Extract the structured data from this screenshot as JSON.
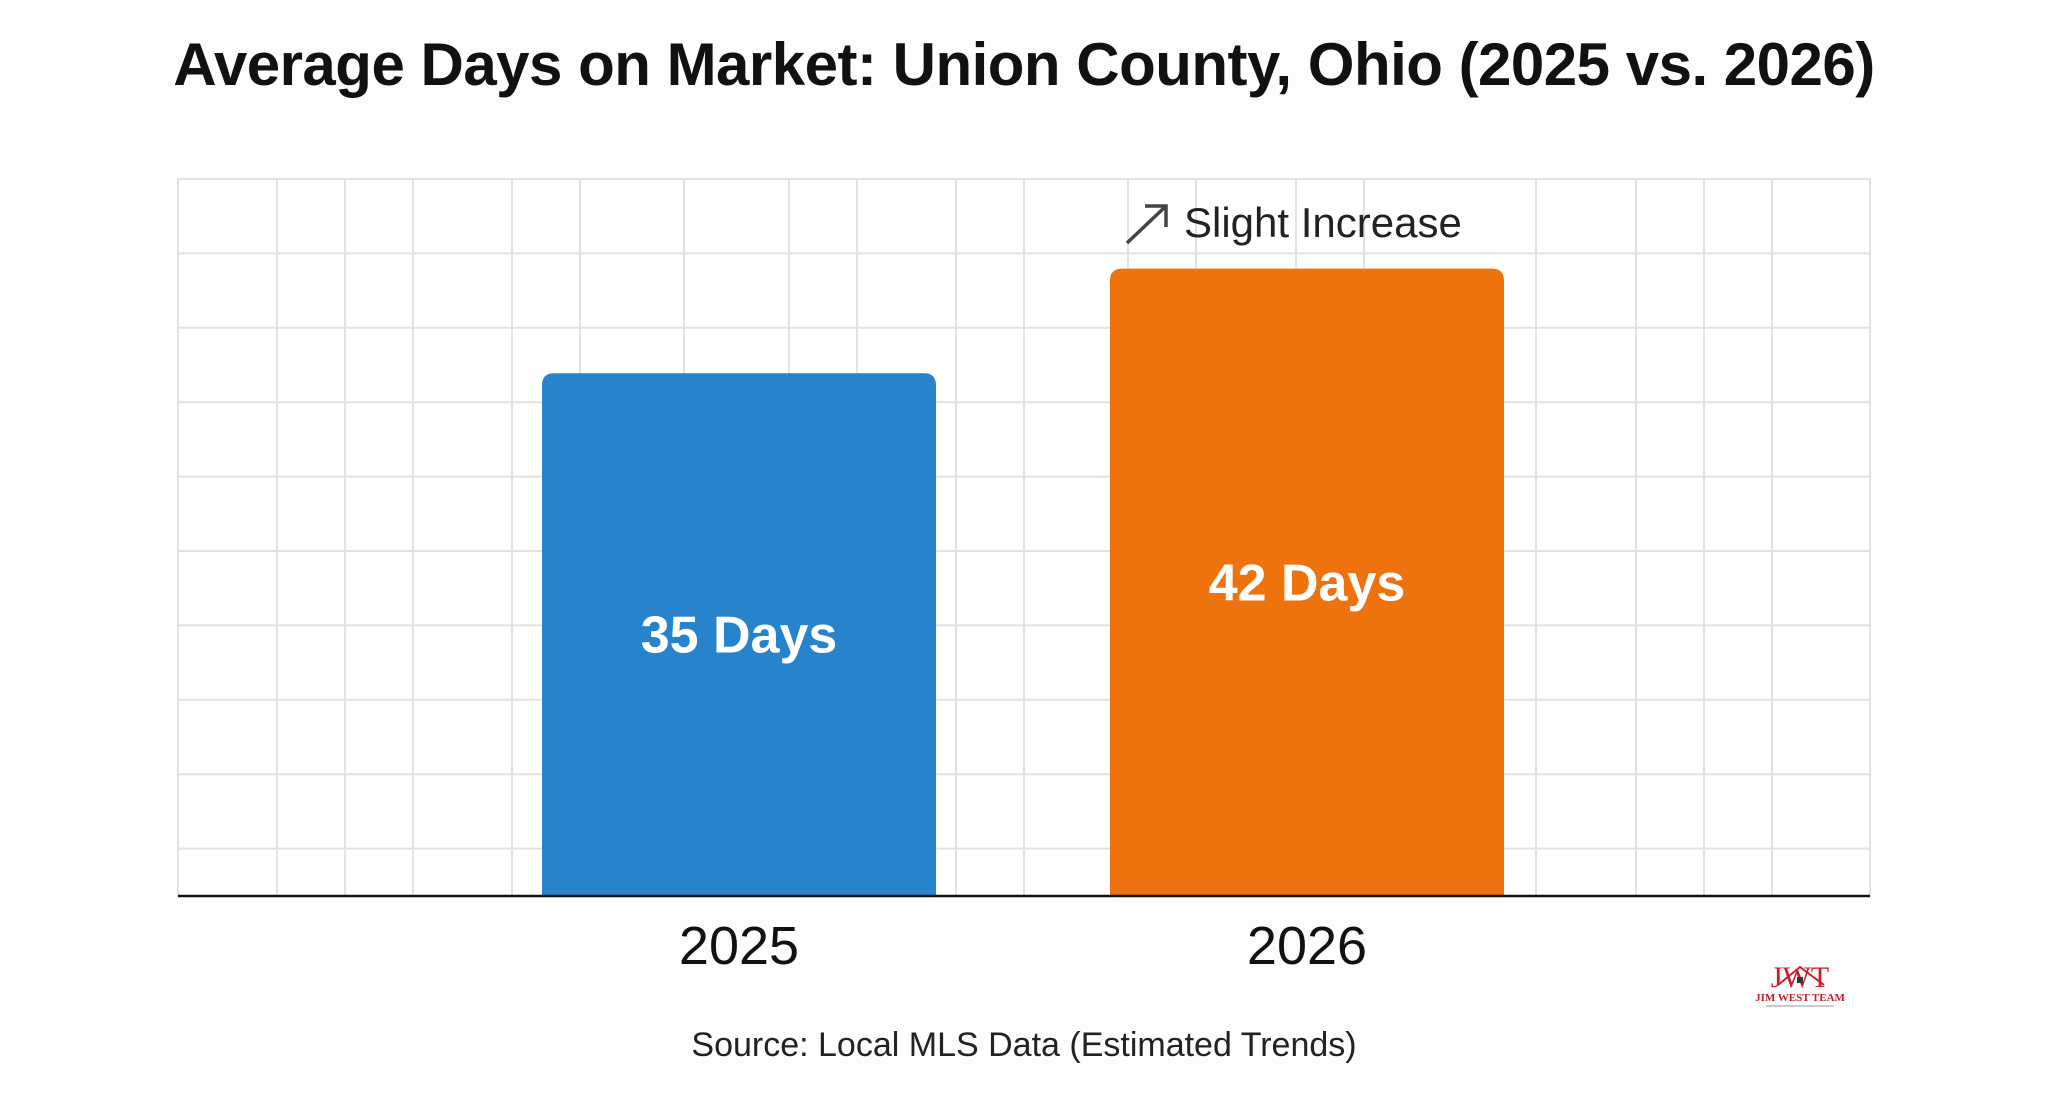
{
  "chart_data": {
    "type": "bar",
    "title": "Average Days on Market: Union County, Ohio (2025 vs. 2026)",
    "categories": [
      "2025",
      "2026"
    ],
    "values": [
      35,
      42
    ],
    "data_labels": [
      "35 Days",
      "42 Days"
    ],
    "colors": [
      "#2783cc",
      "#ee730f"
    ],
    "annotation": {
      "text": "Slight Increase",
      "icon": "arrow-up-right-icon",
      "category": "2026"
    },
    "xlabel": "",
    "ylabel": "",
    "ylim": [
      0,
      48
    ],
    "grid": true,
    "legend": "none"
  },
  "source": "Source: Local MLS Data (Estimated Trends)",
  "logo": {
    "mark": "JWT",
    "name": "JIM WEST TEAM"
  }
}
